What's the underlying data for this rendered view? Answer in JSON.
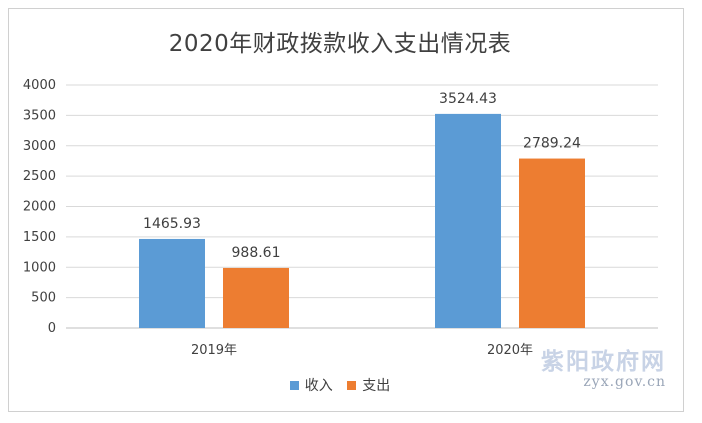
{
  "chart_data": {
    "type": "bar",
    "title": "2020年财政拨款收入支出情况表",
    "categories": [
      "2019年",
      "2020年"
    ],
    "series": [
      {
        "name": "收入",
        "values": [
          1465.93,
          3524.43
        ],
        "color": "#5b9bd5"
      },
      {
        "name": "支出",
        "values": [
          988.61,
          2789.24
        ],
        "color": "#ed7d31"
      }
    ],
    "data_labels": [
      [
        "1465.93",
        "3524.43"
      ],
      [
        "988.61",
        "2789.24"
      ]
    ],
    "ylim": [
      0,
      4000
    ],
    "yticks": [
      0,
      500,
      1000,
      1500,
      2000,
      2500,
      3000,
      3500,
      4000
    ],
    "grid": true,
    "legend_position": "bottom",
    "xlabel": "",
    "ylabel": ""
  },
  "watermark": {
    "name": "紫阳政府网",
    "url": "zyx.gov.cn"
  }
}
